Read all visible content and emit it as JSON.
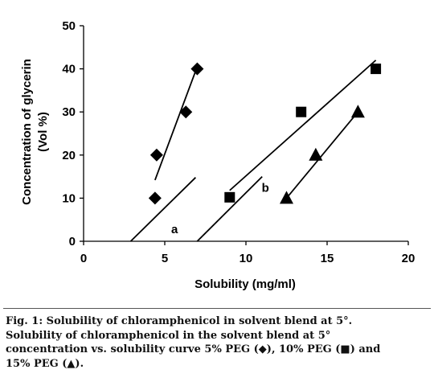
{
  "chart_data": {
    "type": "scatter",
    "xlabel": "Solubility (mg/ml)",
    "ylabel_line1": "Concentration of glycerin",
    "ylabel_line2": "(Vol %)",
    "xlim": [
      0,
      20
    ],
    "ylim": [
      0,
      50
    ],
    "x_ticks": [
      0,
      5,
      10,
      15,
      20
    ],
    "y_ticks": [
      0,
      10,
      20,
      30,
      40,
      50
    ],
    "grid": false,
    "legend": "none",
    "series": [
      {
        "marker": "diamond",
        "points": [
          [
            4.4,
            10
          ],
          [
            4.5,
            20
          ],
          [
            6.3,
            30
          ],
          [
            7.0,
            40
          ]
        ],
        "trend": [
          [
            4.4,
            14.2
          ],
          [
            7.0,
            40.5
          ]
        ]
      },
      {
        "marker": "square",
        "points": [
          [
            9.0,
            10.2
          ],
          [
            13.4,
            30
          ],
          [
            18.0,
            40
          ]
        ],
        "trend": [
          [
            9.0,
            11.8
          ],
          [
            18.0,
            42.0
          ]
        ]
      },
      {
        "marker": "triangle",
        "points": [
          [
            12.5,
            10
          ],
          [
            14.3,
            20
          ],
          [
            16.9,
            30
          ]
        ],
        "trend": [
          [
            12.5,
            10.0
          ],
          [
            16.9,
            30.0
          ]
        ]
      }
    ],
    "extra_lines": [
      [
        [
          2.9,
          0
        ],
        [
          6.9,
          14.8
        ]
      ],
      [
        [
          7.0,
          0
        ],
        [
          11.0,
          15.0
        ]
      ]
    ],
    "annotations": [
      {
        "text": "a",
        "x": 5.6,
        "y": 1.9
      },
      {
        "text": "b",
        "x": 11.2,
        "y": 11.5
      }
    ]
  },
  "caption": {
    "line1": "Fig. 1: Solubility of chloramphenicol in solvent blend at 5°.",
    "line2": "Solubility of chloramphenicol in the solvent blend at 5°",
    "line3": "concentration vs. solubility curve 5% PEG (◆), 10% PEG (■) and",
    "line4": "15% PEG (▲)."
  }
}
